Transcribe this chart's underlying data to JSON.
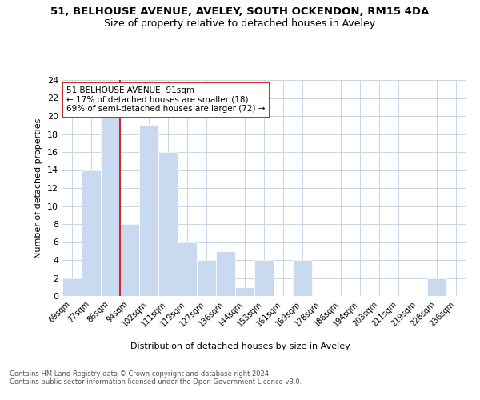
{
  "title_line1": "51, BELHOUSE AVENUE, AVELEY, SOUTH OCKENDON, RM15 4DA",
  "title_line2": "Size of property relative to detached houses in Aveley",
  "xlabel": "Distribution of detached houses by size in Aveley",
  "ylabel": "Number of detached properties",
  "categories": [
    "69sqm",
    "77sqm",
    "86sqm",
    "94sqm",
    "102sqm",
    "111sqm",
    "119sqm",
    "127sqm",
    "136sqm",
    "144sqm",
    "153sqm",
    "161sqm",
    "169sqm",
    "178sqm",
    "186sqm",
    "194sqm",
    "203sqm",
    "211sqm",
    "219sqm",
    "228sqm",
    "236sqm"
  ],
  "values": [
    2,
    14,
    20,
    8,
    19,
    16,
    6,
    4,
    5,
    1,
    4,
    0,
    4,
    0,
    0,
    0,
    0,
    0,
    0,
    2,
    0
  ],
  "bar_color": "#c9d9f0",
  "bar_edge_color": "#ffffff",
  "grid_color": "#c0d0e0",
  "subject_line_color": "#cc0000",
  "annotation_text": "51 BELHOUSE AVENUE: 91sqm\n← 17% of detached houses are smaller (18)\n69% of semi-detached houses are larger (72) →",
  "annotation_box_color": "#ffffff",
  "annotation_box_edge_color": "#cc0000",
  "ylim": [
    0,
    24
  ],
  "yticks": [
    0,
    2,
    4,
    6,
    8,
    10,
    12,
    14,
    16,
    18,
    20,
    22,
    24
  ],
  "footer_text": "Contains HM Land Registry data © Crown copyright and database right 2024.\nContains public sector information licensed under the Open Government Licence v3.0.",
  "bg_color": "#ffffff"
}
